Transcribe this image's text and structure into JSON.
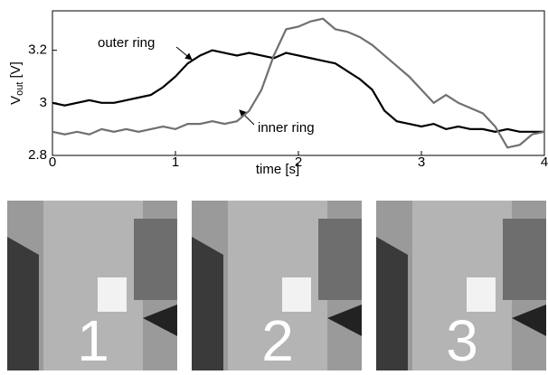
{
  "chart_data": {
    "type": "line",
    "x": [
      0,
      0.1,
      0.2,
      0.3,
      0.4,
      0.5,
      0.6,
      0.7,
      0.8,
      0.9,
      1.0,
      1.1,
      1.2,
      1.3,
      1.4,
      1.5,
      1.6,
      1.7,
      1.8,
      1.9,
      2.0,
      2.1,
      2.2,
      2.3,
      2.4,
      2.5,
      2.6,
      2.7,
      2.8,
      2.9,
      3.0,
      3.1,
      3.2,
      3.3,
      3.4,
      3.5,
      3.6,
      3.7,
      3.8,
      3.9,
      4.0
    ],
    "series": [
      {
        "name": "outer ring",
        "color": "#000000",
        "values": [
          3.0,
          2.99,
          3.0,
          3.01,
          3.0,
          3.0,
          3.01,
          3.02,
          3.03,
          3.06,
          3.1,
          3.15,
          3.18,
          3.2,
          3.19,
          3.18,
          3.19,
          3.18,
          3.17,
          3.19,
          3.18,
          3.17,
          3.16,
          3.15,
          3.12,
          3.09,
          3.05,
          2.97,
          2.93,
          2.92,
          2.91,
          2.92,
          2.9,
          2.91,
          2.9,
          2.9,
          2.89,
          2.9,
          2.89,
          2.89,
          2.89
        ]
      },
      {
        "name": "inner ring",
        "color": "#707070",
        "values": [
          2.89,
          2.88,
          2.89,
          2.88,
          2.9,
          2.89,
          2.9,
          2.89,
          2.9,
          2.91,
          2.9,
          2.92,
          2.92,
          2.93,
          2.92,
          2.93,
          2.97,
          3.05,
          3.18,
          3.28,
          3.29,
          3.31,
          3.32,
          3.28,
          3.27,
          3.25,
          3.22,
          3.18,
          3.14,
          3.1,
          3.05,
          3.0,
          3.03,
          3.0,
          2.98,
          2.96,
          2.91,
          2.83,
          2.84,
          2.88,
          2.89
        ]
      }
    ],
    "annotations": [
      "outer ring",
      "inner ring"
    ],
    "xlabel": "time [s]",
    "ylabel": {
      "main": "V",
      "sub": "out",
      "unit": "[V]"
    },
    "xlim": [
      0,
      4
    ],
    "xticks": [
      0,
      1,
      2,
      3,
      4
    ],
    "ylim": [
      2.8,
      3.35
    ],
    "yticks": [
      2.8,
      3,
      3.2
    ]
  },
  "panels": [
    {
      "label": "1"
    },
    {
      "label": "2"
    },
    {
      "label": "3"
    }
  ]
}
